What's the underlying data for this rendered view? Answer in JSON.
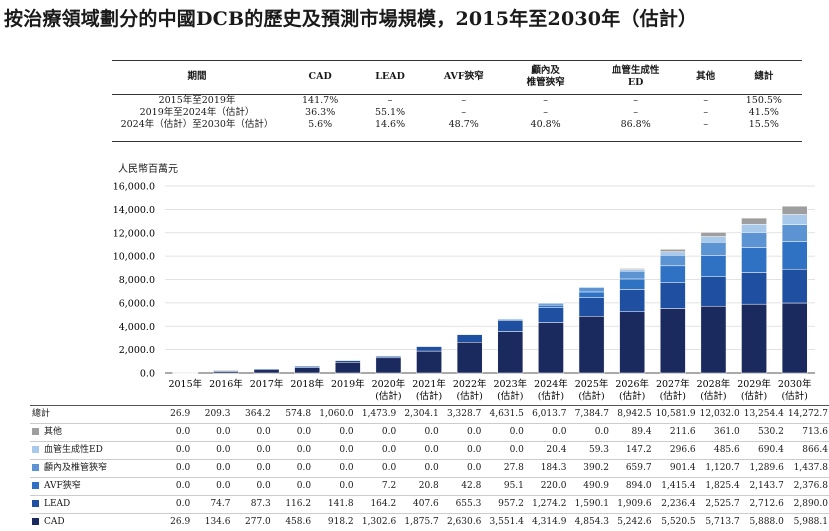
{
  "title": "按治療領域劃分的中國DCB的歷史及預測市場規模，2015年至2030年（估計）",
  "cagr_table": {
    "headers": [
      "期間",
      "CAD",
      "LEAD",
      "AVF狹窄",
      "顱內及\n椎管狹窄",
      "血管生成性\nED",
      "其他",
      "總計"
    ],
    "rows": [
      [
        "2015年至2019年",
        "141.7%",
        "–",
        "–",
        "–",
        "–",
        "–",
        "150.5%"
      ],
      [
        "2019年至2024年（估計）",
        "36.3%",
        "55.1%",
        "–",
        "–",
        "–",
        "–",
        "41.5%"
      ],
      [
        "2024年（估計）至2030年（估計）",
        "5.6%",
        "14.6%",
        "48.7%",
        "40.8%",
        "86.8%",
        "–",
        "15.5%"
      ]
    ]
  },
  "unit_label": "人民幣百萬元",
  "chart_data": {
    "type": "bar",
    "stacked": true,
    "ylim": [
      0,
      16000
    ],
    "yticks": [
      "0.0",
      "2,000.0",
      "4,000.0",
      "6,000.0",
      "8,000.0",
      "10,000.0",
      "12,000.0",
      "14,000.0",
      "16,000.0"
    ],
    "categories": [
      "2015年",
      "2016年",
      "2017年",
      "2018年",
      "2019年",
      "2020年\n(估計)",
      "2021年\n(估計)",
      "2022年\n(估計)",
      "2023年\n(估計)",
      "2024年\n(估計)",
      "2025年\n(估計)",
      "2026年\n(估計)",
      "2027年\n(估計)",
      "2028年\n(估計)",
      "2029年\n(估計)",
      "2030年\n(估計)"
    ],
    "series": [
      {
        "name": "CAD",
        "color": "#1b2a5e",
        "values": [
          26.9,
          134.6,
          277.0,
          458.6,
          918.2,
          1302.6,
          1875.7,
          2630.6,
          3551.4,
          4314.9,
          4854.3,
          5242.6,
          5520.5,
          5713.7,
          5888.0,
          5988.1
        ]
      },
      {
        "name": "LEAD",
        "color": "#1f4fa0",
        "values": [
          0.0,
          74.7,
          87.3,
          116.2,
          141.8,
          164.2,
          407.6,
          655.3,
          957.2,
          1274.2,
          1590.1,
          1909.6,
          2236.4,
          2525.7,
          2712.6,
          2890.0
        ]
      },
      {
        "name": "AVF狹窄",
        "color": "#2f72c4",
        "values": [
          0.0,
          0.0,
          0.0,
          0.0,
          0.0,
          7.2,
          20.8,
          42.8,
          95.1,
          220.0,
          490.9,
          894.0,
          1415.4,
          1825.4,
          2143.7,
          2376.8
        ]
      },
      {
        "name": "顱內及椎管狹窄",
        "color": "#5b93d3",
        "values": [
          0.0,
          0.0,
          0.0,
          0.0,
          0.0,
          0.0,
          0.0,
          0.0,
          27.8,
          184.3,
          390.2,
          659.7,
          901.4,
          1120.7,
          1289.6,
          1437.8
        ]
      },
      {
        "name": "血管生成性ED",
        "color": "#a9c9ea",
        "values": [
          0.0,
          0.0,
          0.0,
          0.0,
          0.0,
          0.0,
          0.0,
          0.0,
          0.0,
          20.4,
          59.3,
          147.2,
          296.6,
          485.6,
          690.4,
          866.4
        ]
      },
      {
        "name": "其他",
        "color": "#9e9e9e",
        "values": [
          0.0,
          0.0,
          0.0,
          0.0,
          0.0,
          0.0,
          0.0,
          0.0,
          0.0,
          0.0,
          0.0,
          89.4,
          211.6,
          361.0,
          530.2,
          713.6
        ]
      }
    ],
    "totals": [
      26.9,
      209.3,
      364.2,
      574.8,
      1060.0,
      1473.9,
      2304.1,
      3328.7,
      4631.5,
      6013.7,
      7384.7,
      8942.5,
      10581.9,
      12032.0,
      13254.4,
      14272.7
    ]
  },
  "data_table": {
    "total_label": "總計",
    "totals": [
      "26.9",
      "209.3",
      "364.2",
      "574.8",
      "1,060.0",
      "1,473.9",
      "2,304.1",
      "3,328.7",
      "4,631.5",
      "6,013.7",
      "7,384.7",
      "8,942.5",
      "10,581.9",
      "12,032.0",
      "13,254.4",
      "14,272.7"
    ],
    "rows": [
      {
        "label": "其他",
        "color": "#9e9e9e",
        "values": [
          "0.0",
          "0.0",
          "0.0",
          "0.0",
          "0.0",
          "0.0",
          "0.0",
          "0.0",
          "0.0",
          "0.0",
          "0.0",
          "89.4",
          "211.6",
          "361.0",
          "530.2",
          "713.6"
        ]
      },
      {
        "label": "血管生成性ED",
        "color": "#a9c9ea",
        "values": [
          "0.0",
          "0.0",
          "0.0",
          "0.0",
          "0.0",
          "0.0",
          "0.0",
          "0.0",
          "0.0",
          "20.4",
          "59.3",
          "147.2",
          "296.6",
          "485.6",
          "690.4",
          "866.4"
        ]
      },
      {
        "label": "顱內及椎管狹窄",
        "color": "#5b93d3",
        "values": [
          "0.0",
          "0.0",
          "0.0",
          "0.0",
          "0.0",
          "0.0",
          "0.0",
          "0.0",
          "27.8",
          "184.3",
          "390.2",
          "659.7",
          "901.4",
          "1,120.7",
          "1,289.6",
          "1,437.8"
        ]
      },
      {
        "label": "AVF狹窄",
        "color": "#2f72c4",
        "values": [
          "0.0",
          "0.0",
          "0.0",
          "0.0",
          "0.0",
          "7.2",
          "20.8",
          "42.8",
          "95.1",
          "220.0",
          "490.9",
          "894.0",
          "1,415.4",
          "1,825.4",
          "2,143.7",
          "2,376.8"
        ]
      },
      {
        "label": "LEAD",
        "color": "#1f4fa0",
        "values": [
          "0.0",
          "74.7",
          "87.3",
          "116.2",
          "141.8",
          "164.2",
          "407.6",
          "655.3",
          "957.2",
          "1,274.2",
          "1,590.1",
          "1,909.6",
          "2,236.4",
          "2,525.7",
          "2,712.6",
          "2,890.0"
        ]
      },
      {
        "label": "CAD",
        "color": "#1b2a5e",
        "values": [
          "26.9",
          "134.6",
          "277.0",
          "458.6",
          "918.2",
          "1,302.6",
          "1,875.7",
          "2,630.6",
          "3,551.4",
          "4,314.9",
          "4,854.3",
          "5,242.6",
          "5,520.5",
          "5,713.7",
          "5,888.0",
          "5,988.1"
        ]
      }
    ]
  }
}
